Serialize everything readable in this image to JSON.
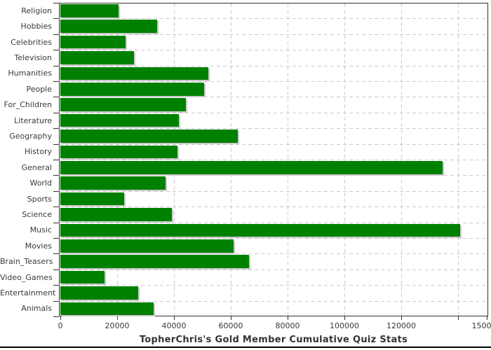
{
  "window": {
    "kind": "static rendered bar chart image"
  },
  "chart_data": {
    "type": "bar",
    "orientation": "horizontal",
    "title": "TopherChris's Gold Member Cumulative Quiz Stats",
    "categories": [
      "Religion",
      "Hobbies",
      "Celebrities",
      "Television",
      "Humanities",
      "People",
      "For_Children",
      "Literature",
      "Geography",
      "History",
      "General",
      "World",
      "Sports",
      "Science",
      "Music",
      "Movies",
      "Brain_Teasers",
      "Video_Games",
      "Entertainment",
      "Animals"
    ],
    "values": [
      20500,
      34000,
      23000,
      26000,
      52000,
      50500,
      44300,
      41800,
      62500,
      41300,
      134600,
      37000,
      22400,
      39300,
      140800,
      61000,
      66400,
      15600,
      27500,
      32800
    ],
    "xlim": [
      0,
      150000
    ],
    "x_ticks": [
      0,
      20000,
      40000,
      60000,
      80000,
      100000,
      120000,
      140000,
      150000
    ],
    "x_tick_labels": [
      "0",
      "20000",
      "40000",
      "60000",
      "80000",
      "100000",
      "120000",
      "",
      "150000"
    ],
    "grid": "dashed vertical gridlines every 20000, dashed horizontal gridlines between category rows",
    "legend": false,
    "xlabel": "",
    "ylabel": ""
  },
  "style": {
    "bar_color": "#008000",
    "bar_shadow_color": "#c9c9c9",
    "grid_color": "#cccccc",
    "axis_color": "#333333",
    "label_color": "#3a3a3a",
    "title_color": "#333333",
    "bottom_rule_color": "#000000",
    "background_color": "#ffffff"
  }
}
